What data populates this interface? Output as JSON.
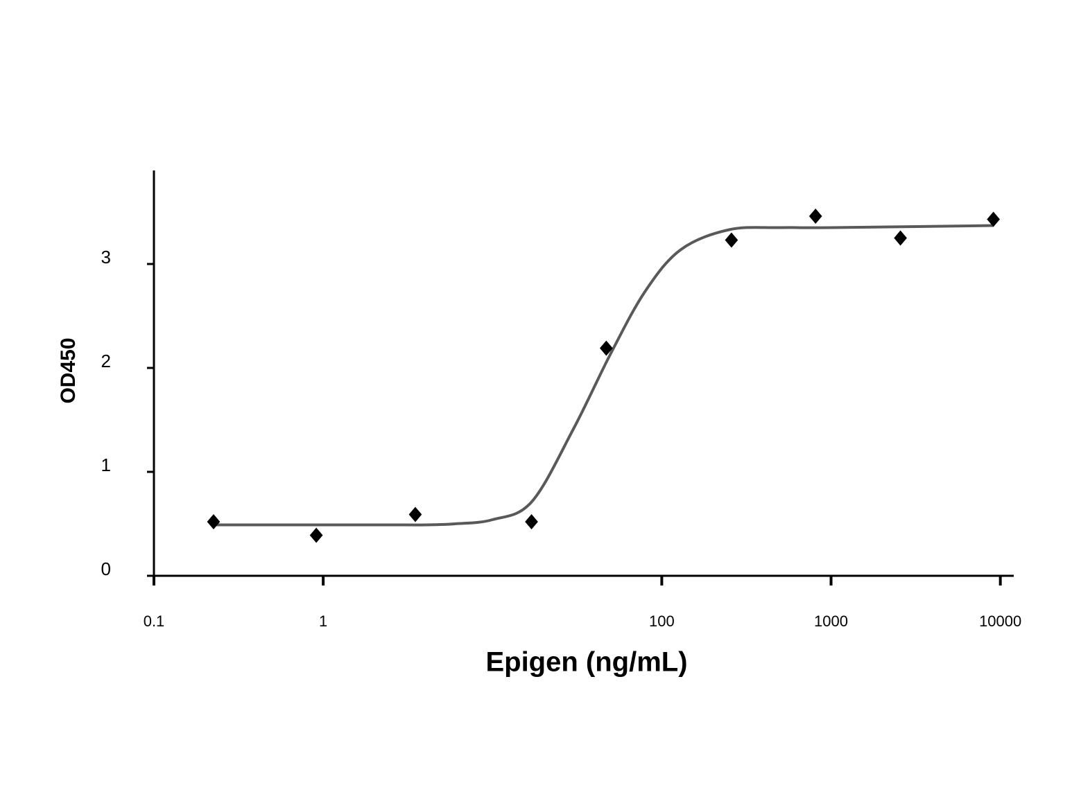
{
  "chart_data": {
    "type": "scatter",
    "x_label": "Epigen (ng/mL)",
    "y_label": "OD450",
    "xscale": "log",
    "xlim": [
      0.1,
      12000
    ],
    "xticks": [
      0.1,
      1,
      100,
      1000,
      10000
    ],
    "ylim": [
      0,
      3.9
    ],
    "yticks": [
      0,
      1,
      2,
      3
    ],
    "series": [
      {
        "kind": "points",
        "marker": "diamond",
        "color": "#000000",
        "x": [
          0.225,
          0.91,
          3.5,
          17,
          47,
          258,
          810,
          2570,
          9100
        ],
        "values": [
          0.52,
          0.39,
          0.59,
          0.52,
          2.19,
          3.23,
          3.46,
          3.25,
          3.43
        ]
      },
      {
        "kind": "line",
        "color": "#595959",
        "x": [
          0.225,
          1,
          3,
          4,
          6,
          10,
          17,
          30,
          50,
          80,
          130,
          250,
          500,
          1000,
          9100
        ],
        "values": [
          0.49,
          0.49,
          0.49,
          0.49,
          0.5,
          0.54,
          0.71,
          1.41,
          2.14,
          2.74,
          3.14,
          3.33,
          3.35,
          3.35,
          3.37
        ]
      }
    ]
  }
}
